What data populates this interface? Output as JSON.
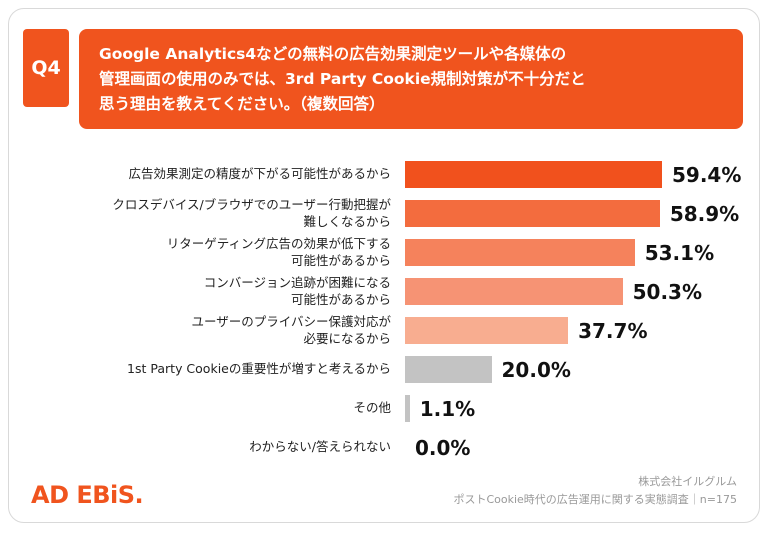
{
  "header": {
    "badge": "Q4",
    "question": "Google Analytics4などの無料の広告効果測定ツールや各媒体の\n管理画面の使用のみでは、3rd Party Cookie規制対策が不十分だと\n思う理由を教えてください。（複数回答）"
  },
  "chart_data": {
    "type": "bar",
    "orientation": "horizontal",
    "unit": "%",
    "xlim": [
      0,
      100
    ],
    "legend": "none",
    "grid": false,
    "rows": [
      {
        "label": "広告効果測定の精度が下がる可能性があるから",
        "value": 59.4,
        "pct": "59.4%",
        "color": "#f1511d"
      },
      {
        "label": "クロスデバイス/ブラウザでのユーザー行動把握が\n難しくなるから",
        "value": 58.9,
        "pct": "58.9%",
        "color": "#f36c3e"
      },
      {
        "label": "リターゲティング広告の効果が低下する\n可能性があるから",
        "value": 53.1,
        "pct": "53.1%",
        "color": "#f5825c"
      },
      {
        "label": "コンバージョン追跡が困難になる\n可能性があるから",
        "value": 50.3,
        "pct": "50.3%",
        "color": "#f69374"
      },
      {
        "label": "ユーザーのプライバシー保護対応が\n必要になるから",
        "value": 37.7,
        "pct": "37.7%",
        "color": "#f8ad90"
      },
      {
        "label": "1st Party Cookieの重要性が増すと考えるから",
        "value": 20.0,
        "pct": "20.0%",
        "color": "#c3c3c3"
      },
      {
        "label": "その他",
        "value": 1.1,
        "pct": "1.1%",
        "color": "#c3c3c3"
      },
      {
        "label": "わからない/答えられない",
        "value": 0.0,
        "pct": "0.0%",
        "color": "#c3c3c3"
      }
    ]
  },
  "footer": {
    "logo": "AD EBiS.",
    "source": "株式会社イルグルム\nポストCookie時代の広告運用に関する実態調査｜n=175"
  }
}
